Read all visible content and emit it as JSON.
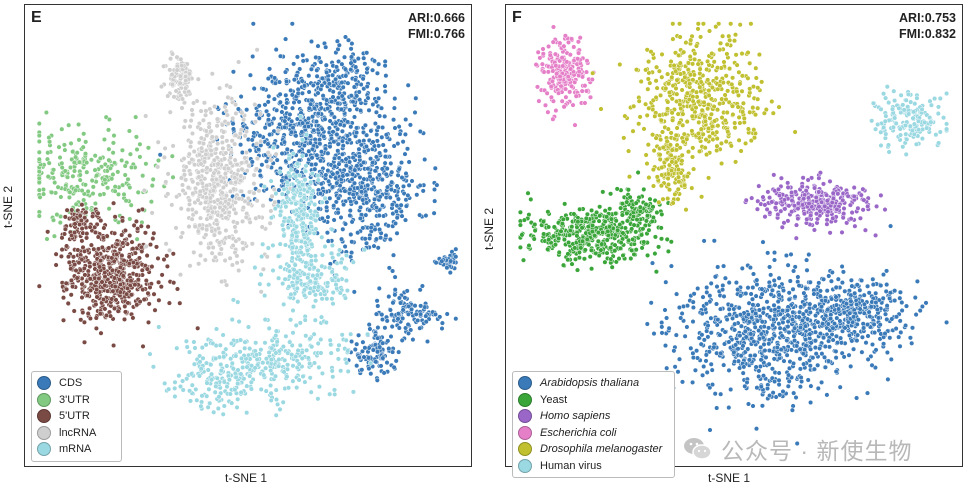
{
  "chart_data": [
    {
      "type": "scatter",
      "panel_label": "E",
      "ari": "ARI:0.666",
      "fmi": "FMI:0.766",
      "xlabel": "t-SNE 1",
      "ylabel": "t-SNE 2",
      "legend_position": "bottom-left",
      "xlim": [
        0,
        100
      ],
      "ylim": [
        0,
        100
      ],
      "series": [
        {
          "name": "CDS",
          "color": "#3a7ab8",
          "points": 1500,
          "clusters": [
            {
              "cx": 65,
              "cy": 28,
              "sx": 11,
              "sy": 10,
              "n": 0.45
            },
            {
              "cx": 78,
              "cy": 40,
              "sx": 9,
              "sy": 10,
              "n": 0.25
            },
            {
              "cx": 72,
              "cy": 15,
              "sx": 8,
              "sy": 5,
              "n": 0.12
            },
            {
              "cx": 88,
              "cy": 68,
              "sx": 5,
              "sy": 3,
              "n": 0.08
            },
            {
              "cx": 80,
              "cy": 77,
              "sx": 3.5,
              "sy": 3,
              "n": 0.07
            },
            {
              "cx": 97,
              "cy": 56,
              "sx": 1.5,
              "sy": 1.2,
              "n": 0.03
            }
          ]
        },
        {
          "name": "3'UTR",
          "color": "#82c982",
          "points": 260,
          "clusters": [
            {
              "cx": 12,
              "cy": 37,
              "sx": 10,
              "sy": 7,
              "n": 1.0
            }
          ]
        },
        {
          "name": "5'UTR",
          "color": "#7a4a44",
          "points": 620,
          "clusters": [
            {
              "cx": 18,
              "cy": 59,
              "sx": 7,
              "sy": 7,
              "n": 0.9
            },
            {
              "cx": 10,
              "cy": 47,
              "sx": 3,
              "sy": 3,
              "n": 0.1
            }
          ]
        },
        {
          "name": "lncRNA",
          "color": "#cfcfcf",
          "points": 650,
          "clusters": [
            {
              "cx": 43,
              "cy": 38,
              "sx": 7,
              "sy": 11,
              "n": 0.85
            },
            {
              "cx": 34,
              "cy": 14,
              "sx": 2,
              "sy": 3,
              "n": 0.15
            }
          ]
        },
        {
          "name": "mRNA",
          "color": "#9ad8e2",
          "points": 820,
          "clusters": [
            {
              "cx": 62,
              "cy": 45,
              "sx": 3,
              "sy": 8,
              "n": 0.3
            },
            {
              "cx": 65,
              "cy": 60,
              "sx": 6,
              "sy": 4,
              "n": 0.2
            },
            {
              "cx": 58,
              "cy": 78,
              "sx": 10,
              "sy": 6,
              "n": 0.3
            },
            {
              "cx": 44,
              "cy": 82,
              "sx": 8,
              "sy": 5,
              "n": 0.2
            }
          ]
        }
      ]
    },
    {
      "type": "scatter",
      "panel_label": "F",
      "ari": "ARI:0.753",
      "fmi": "FMI:0.832",
      "xlabel": "t-SNE 1",
      "ylabel": "t-SNE 2",
      "legend_position": "bottom-left",
      "xlim": [
        0,
        100
      ],
      "ylim": [
        0,
        100
      ],
      "series": [
        {
          "name": "Arabidopsis thaliana",
          "italic": true,
          "color": "#3a7ab8",
          "points": 1100,
          "clusters": [
            {
              "cx": 58,
              "cy": 72,
              "sx": 13,
              "sy": 9,
              "n": 0.7
            },
            {
              "cx": 78,
              "cy": 68,
              "sx": 8,
              "sy": 5,
              "n": 0.3
            }
          ]
        },
        {
          "name": "Yeast",
          "italic": false,
          "color": "#3aa63a",
          "points": 520,
          "clusters": [
            {
              "cx": 17,
              "cy": 50,
              "sx": 9,
              "sy": 4,
              "n": 0.85
            },
            {
              "cx": 28,
              "cy": 44,
              "sx": 3,
              "sy": 3,
              "n": 0.15
            }
          ]
        },
        {
          "name": "Homo sapiens",
          "italic": true,
          "color": "#9a67c8",
          "points": 300,
          "clusters": [
            {
              "cx": 69,
              "cy": 43,
              "sx": 8,
              "sy": 3.2,
              "n": 1.0
            }
          ]
        },
        {
          "name": "Escherichia coli",
          "italic": true,
          "color": "#e57fc8",
          "points": 240,
          "clusters": [
            {
              "cx": 11,
              "cy": 13,
              "sx": 3.5,
              "sy": 5,
              "n": 1.0
            }
          ]
        },
        {
          "name": "Drosophila melanogaster",
          "italic": true,
          "color": "#c0c030",
          "points": 620,
          "clusters": [
            {
              "cx": 42,
              "cy": 19,
              "sx": 9,
              "sy": 9,
              "n": 0.8
            },
            {
              "cx": 36,
              "cy": 35,
              "sx": 3,
              "sy": 5,
              "n": 0.2
            }
          ]
        },
        {
          "name": "Human virus",
          "italic": false,
          "color": "#9ad8e2",
          "points": 170,
          "clusters": [
            {
              "cx": 90,
              "cy": 24,
              "sx": 5,
              "sy": 4,
              "n": 1.0
            }
          ]
        }
      ]
    }
  ],
  "watermark": {
    "text": "公众号 · 新使生物",
    "icon": "wechat-icon"
  }
}
